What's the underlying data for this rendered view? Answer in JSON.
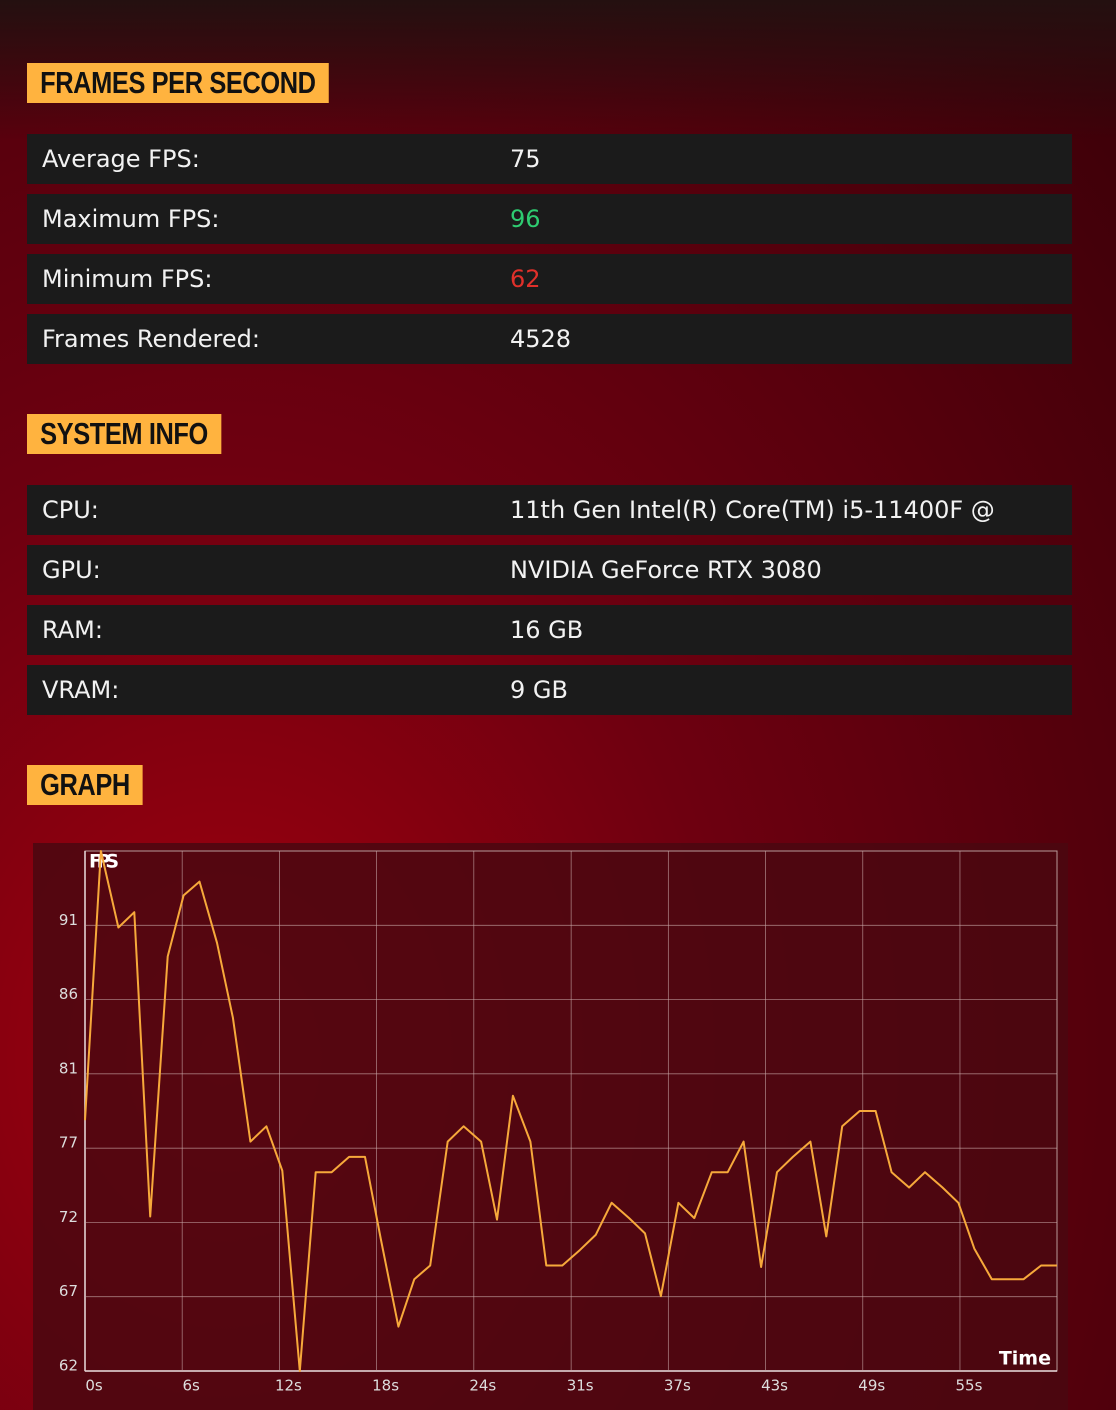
{
  "fps_section": {
    "title": "FRAMES PER SECOND",
    "rows": [
      {
        "label": "Average FPS:",
        "value": "75"
      },
      {
        "label": "Maximum FPS:",
        "value": "96"
      },
      {
        "label": "Minimum FPS:",
        "value": "62"
      },
      {
        "label": "Frames Rendered:",
        "value": "4528"
      }
    ]
  },
  "system_section": {
    "title": "SYSTEM INFO",
    "rows": [
      {
        "label": "CPU:",
        "value": "11th Gen Intel(R) Core(TM) i5-11400F @"
      },
      {
        "label": "GPU:",
        "value": "NVIDIA GeForce RTX 3080"
      },
      {
        "label": "RAM:",
        "value": "16 GB"
      },
      {
        "label": "VRAM:",
        "value": "9 GB"
      }
    ]
  },
  "graph_section": {
    "title": "GRAPH"
  },
  "chart_data": {
    "type": "line",
    "ylabel": "FPS",
    "xlabel": "Time",
    "color": "#f7a93b",
    "grid": true,
    "x": [
      0,
      1.0,
      2.1,
      3.1,
      4.1,
      5.2,
      6.2,
      7.2,
      8.3,
      9.3,
      10.4,
      11.4,
      12.4,
      13.5,
      14.5,
      15.5,
      16.6,
      17.6,
      18.6,
      19.7,
      20.7,
      21.7,
      22.8,
      23.8,
      24.9,
      25.9,
      26.9,
      28.0,
      29.0,
      30.0,
      31.1,
      32.1,
      33.1,
      34.2,
      35.2,
      36.2,
      37.3,
      38.3,
      39.4,
      40.4,
      41.4,
      42.5,
      43.5,
      44.5,
      45.6,
      46.6,
      47.6,
      48.7,
      49.7,
      50.7,
      51.8,
      52.8,
      53.9,
      54.9,
      55.9,
      57.0,
      58.0,
      59.0,
      60.1,
      61.1
    ],
    "values": [
      78.4,
      96,
      91,
      92,
      72.1,
      89.1,
      93.1,
      94,
      90,
      85.1,
      77,
      78,
      75.1,
      62,
      75,
      75,
      76,
      76,
      70.6,
      64.9,
      68,
      68.9,
      77,
      78,
      77,
      71.9,
      80,
      77,
      68.9,
      68.9,
      69.9,
      70.9,
      73,
      72,
      71,
      66.9,
      73,
      72,
      75,
      75,
      77,
      68.8,
      75,
      76,
      77,
      70.8,
      78,
      79,
      79,
      75,
      74,
      75,
      74,
      73,
      70,
      68,
      68,
      68,
      68.9,
      68.9
    ],
    "xlim": [
      0,
      61.1
    ],
    "ylim": [
      62,
      96
    ],
    "xticks": [
      {
        "value": 0,
        "label": "0s"
      },
      {
        "value": 6.11,
        "label": "6s"
      },
      {
        "value": 12.22,
        "label": "12s"
      },
      {
        "value": 18.33,
        "label": "18s"
      },
      {
        "value": 24.44,
        "label": "24s"
      },
      {
        "value": 30.56,
        "label": "31s"
      },
      {
        "value": 36.67,
        "label": "37s"
      },
      {
        "value": 42.78,
        "label": "43s"
      },
      {
        "value": 48.89,
        "label": "49s"
      },
      {
        "value": 55,
        "label": "55s"
      }
    ],
    "yticks": [
      62,
      {
        "value": 66.86,
        "label": "67"
      },
      {
        "value": 71.71,
        "label": "72"
      },
      {
        "value": 76.57,
        "label": "77"
      },
      {
        "value": 81.43,
        "label": "81"
      },
      {
        "value": 86.29,
        "label": "86"
      },
      {
        "value": 91.14,
        "label": "91"
      }
    ]
  }
}
